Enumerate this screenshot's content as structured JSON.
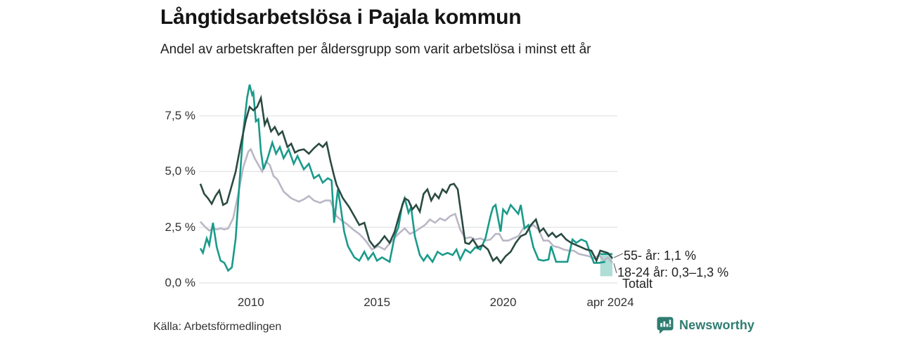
{
  "header": {
    "title": "Långtidsarbetslösa i Pajala kommun",
    "subtitle": "Andel av arbetskraften per åldersgrupp som varit arbetslösa i minst ett år"
  },
  "source": {
    "label": "Källa: Arbetsförmedlingen"
  },
  "branding": {
    "name": "Newsworthy",
    "logo_icon": "speech-bubble-bar-chart",
    "color": "#2f7c71"
  },
  "colors": {
    "series_55": "#2a4a41",
    "series_18_24": "#199a8a",
    "series_total": "#bab7c6",
    "band_fill": "#a0d8cf",
    "gridline": "#e4e4e9",
    "leader": "#666666",
    "text_dark": "#141414",
    "text_axis": "#333333"
  },
  "chart_data": {
    "type": "line",
    "title": "Långtidsarbetslösa i Pajala kommun",
    "subtitle": "Andel av arbetskraften per åldersgrupp som varit arbetslösa i minst ett år",
    "unit": "%",
    "grid": true,
    "x_axis": {
      "range_years": [
        2008.0,
        2024.333
      ],
      "ticks": [
        {
          "label": "2010",
          "year": 2010
        },
        {
          "label": "2015",
          "year": 2015
        },
        {
          "label": "2020",
          "year": 2020
        },
        {
          "label": "apr 2024",
          "year": 2024.25
        }
      ]
    },
    "y_axis": {
      "range": [
        0,
        9.2
      ],
      "gridline_max_value": 7.5,
      "ticks": [
        {
          "label": "7,5 %",
          "value": 7.5
        },
        {
          "label": "5,0 %",
          "value": 5.0
        },
        {
          "label": "2,5 %",
          "value": 2.5
        },
        {
          "label": "0,0 %",
          "value": 0.0
        }
      ]
    },
    "annotations": [
      {
        "label": "55- år: 1,1 %"
      },
      {
        "label": "18-24 år: 0,3–1,3 %"
      },
      {
        "label": "Totalt"
      }
    ],
    "band": {
      "series": "18-24 år",
      "x_from": 2023.85,
      "x_to": 2024.333,
      "value_from": 0.3,
      "value_to": 1.3,
      "top_edge_color": "#199a8a"
    },
    "series": [
      {
        "name": "Totalt",
        "color": "#bab7c6",
        "end_value": 0.9,
        "points": [
          [
            2008.0,
            2.75
          ],
          [
            2008.2,
            2.5
          ],
          [
            2008.35,
            2.35
          ],
          [
            2008.5,
            2.45
          ],
          [
            2008.65,
            2.4
          ],
          [
            2008.8,
            2.45
          ],
          [
            2008.95,
            2.4
          ],
          [
            2009.1,
            2.45
          ],
          [
            2009.3,
            2.9
          ],
          [
            2009.5,
            4.0
          ],
          [
            2009.7,
            5.2
          ],
          [
            2009.9,
            5.9
          ],
          [
            2010.0,
            6.0
          ],
          [
            2010.15,
            5.6
          ],
          [
            2010.3,
            5.3
          ],
          [
            2010.45,
            5.0
          ],
          [
            2010.6,
            5.45
          ],
          [
            2010.75,
            5.3
          ],
          [
            2010.9,
            4.8
          ],
          [
            2011.05,
            4.65
          ],
          [
            2011.3,
            4.1
          ],
          [
            2011.6,
            3.8
          ],
          [
            2011.9,
            3.65
          ],
          [
            2012.1,
            3.75
          ],
          [
            2012.3,
            3.9
          ],
          [
            2012.5,
            3.7
          ],
          [
            2012.75,
            3.6
          ],
          [
            2012.95,
            3.7
          ],
          [
            2013.15,
            3.7
          ],
          [
            2013.4,
            3.0
          ],
          [
            2013.6,
            2.8
          ],
          [
            2013.8,
            2.65
          ],
          [
            2014.05,
            2.4
          ],
          [
            2014.3,
            2.2
          ],
          [
            2014.55,
            1.9
          ],
          [
            2014.8,
            1.5
          ],
          [
            2015.05,
            1.65
          ],
          [
            2015.3,
            1.5
          ],
          [
            2015.6,
            1.9
          ],
          [
            2015.85,
            2.2
          ],
          [
            2016.1,
            2.45
          ],
          [
            2016.3,
            2.2
          ],
          [
            2016.5,
            2.3
          ],
          [
            2016.7,
            2.45
          ],
          [
            2016.9,
            2.6
          ],
          [
            2017.1,
            2.85
          ],
          [
            2017.3,
            2.7
          ],
          [
            2017.5,
            2.9
          ],
          [
            2017.7,
            2.8
          ],
          [
            2017.9,
            3.0
          ],
          [
            2018.1,
            3.1
          ],
          [
            2018.3,
            2.4
          ],
          [
            2018.5,
            2.0
          ],
          [
            2018.7,
            2.05
          ],
          [
            2018.9,
            1.95
          ],
          [
            2019.1,
            2.0
          ],
          [
            2019.3,
            1.9
          ],
          [
            2019.5,
            1.95
          ],
          [
            2019.7,
            2.2
          ],
          [
            2019.85,
            2.2
          ],
          [
            2020.0,
            1.9
          ],
          [
            2020.2,
            1.9
          ],
          [
            2020.4,
            2.0
          ],
          [
            2020.6,
            2.1
          ],
          [
            2020.8,
            2.45
          ],
          [
            2021.0,
            2.5
          ],
          [
            2021.2,
            2.6
          ],
          [
            2021.4,
            2.4
          ],
          [
            2021.6,
            1.9
          ],
          [
            2021.8,
            1.9
          ],
          [
            2022.0,
            1.65
          ],
          [
            2022.2,
            1.6
          ],
          [
            2022.4,
            1.5
          ],
          [
            2022.6,
            1.45
          ],
          [
            2022.8,
            1.45
          ],
          [
            2023.0,
            1.3
          ],
          [
            2023.2,
            1.25
          ],
          [
            2023.4,
            1.2
          ],
          [
            2023.6,
            1.1
          ],
          [
            2023.8,
            1.25
          ],
          [
            2024.0,
            1.0
          ],
          [
            2024.15,
            1.15
          ],
          [
            2024.333,
            0.9
          ]
        ]
      },
      {
        "name": "18-24 år",
        "color": "#199a8a",
        "end_value_range": [
          0.3,
          1.3
        ],
        "points": [
          [
            2008.0,
            1.55
          ],
          [
            2008.1,
            1.35
          ],
          [
            2008.25,
            2.0
          ],
          [
            2008.35,
            1.7
          ],
          [
            2008.5,
            2.7
          ],
          [
            2008.65,
            1.6
          ],
          [
            2008.8,
            1.0
          ],
          [
            2008.95,
            0.9
          ],
          [
            2009.1,
            0.55
          ],
          [
            2009.25,
            0.7
          ],
          [
            2009.4,
            2.0
          ],
          [
            2009.55,
            4.5
          ],
          [
            2009.7,
            6.8
          ],
          [
            2009.85,
            8.3
          ],
          [
            2009.95,
            8.9
          ],
          [
            2010.05,
            8.45
          ],
          [
            2010.1,
            8.55
          ],
          [
            2010.2,
            7.25
          ],
          [
            2010.3,
            7.35
          ],
          [
            2010.4,
            5.9
          ],
          [
            2010.5,
            5.1
          ],
          [
            2010.65,
            5.55
          ],
          [
            2010.85,
            6.3
          ],
          [
            2011.0,
            5.8
          ],
          [
            2011.15,
            6.1
          ],
          [
            2011.3,
            5.6
          ],
          [
            2011.5,
            6.0
          ],
          [
            2011.7,
            5.35
          ],
          [
            2011.85,
            5.7
          ],
          [
            2012.1,
            5.1
          ],
          [
            2012.3,
            5.35
          ],
          [
            2012.5,
            4.7
          ],
          [
            2012.7,
            4.85
          ],
          [
            2012.85,
            4.5
          ],
          [
            2013.05,
            4.7
          ],
          [
            2013.2,
            4.6
          ],
          [
            2013.3,
            2.7
          ],
          [
            2013.45,
            4.2
          ],
          [
            2013.55,
            3.5
          ],
          [
            2013.7,
            2.3
          ],
          [
            2013.85,
            1.65
          ],
          [
            2014.1,
            1.15
          ],
          [
            2014.3,
            1.0
          ],
          [
            2014.5,
            1.4
          ],
          [
            2014.65,
            1.05
          ],
          [
            2014.85,
            1.35
          ],
          [
            2015.0,
            1.0
          ],
          [
            2015.2,
            1.15
          ],
          [
            2015.5,
            0.95
          ],
          [
            2015.7,
            2.1
          ],
          [
            2015.85,
            2.5
          ],
          [
            2016.0,
            3.5
          ],
          [
            2016.1,
            3.8
          ],
          [
            2016.25,
            3.15
          ],
          [
            2016.35,
            3.4
          ],
          [
            2016.5,
            2.1
          ],
          [
            2016.7,
            1.25
          ],
          [
            2016.85,
            1.0
          ],
          [
            2017.0,
            1.25
          ],
          [
            2017.2,
            0.95
          ],
          [
            2017.4,
            1.4
          ],
          [
            2017.6,
            1.25
          ],
          [
            2017.8,
            1.35
          ],
          [
            2018.0,
            1.25
          ],
          [
            2018.15,
            1.5
          ],
          [
            2018.3,
            1.05
          ],
          [
            2018.5,
            1.5
          ],
          [
            2018.7,
            1.35
          ],
          [
            2018.9,
            1.6
          ],
          [
            2019.1,
            1.5
          ],
          [
            2019.3,
            2.0
          ],
          [
            2019.5,
            3.0
          ],
          [
            2019.6,
            3.4
          ],
          [
            2019.7,
            3.5
          ],
          [
            2019.8,
            2.9
          ],
          [
            2019.9,
            2.3
          ],
          [
            2020.0,
            3.3
          ],
          [
            2020.15,
            3.1
          ],
          [
            2020.3,
            3.5
          ],
          [
            2020.45,
            3.3
          ],
          [
            2020.6,
            3.1
          ],
          [
            2020.7,
            3.5
          ],
          [
            2020.85,
            2.45
          ],
          [
            2021.0,
            2.6
          ],
          [
            2021.2,
            1.6
          ],
          [
            2021.4,
            1.05
          ],
          [
            2021.6,
            1.0
          ],
          [
            2021.8,
            1.05
          ],
          [
            2021.9,
            1.65
          ],
          [
            2022.1,
            0.95
          ],
          [
            2022.3,
            0.95
          ],
          [
            2022.55,
            0.95
          ],
          [
            2022.75,
            1.95
          ],
          [
            2022.9,
            1.8
          ],
          [
            2023.1,
            1.95
          ],
          [
            2023.3,
            1.85
          ],
          [
            2023.45,
            1.35
          ],
          [
            2023.6,
            0.9
          ],
          [
            2023.8,
            0.9
          ],
          [
            2024.05,
            0.95
          ]
        ]
      },
      {
        "name": "55- år",
        "color": "#2a4a41",
        "end_value": 1.1,
        "points": [
          [
            2008.0,
            4.45
          ],
          [
            2008.15,
            4.0
          ],
          [
            2008.3,
            3.8
          ],
          [
            2008.45,
            3.55
          ],
          [
            2008.6,
            3.9
          ],
          [
            2008.75,
            4.15
          ],
          [
            2008.9,
            3.5
          ],
          [
            2009.05,
            3.6
          ],
          [
            2009.2,
            4.2
          ],
          [
            2009.4,
            5.0
          ],
          [
            2009.6,
            6.2
          ],
          [
            2009.8,
            7.3
          ],
          [
            2009.95,
            7.9
          ],
          [
            2010.1,
            7.75
          ],
          [
            2010.25,
            7.9
          ],
          [
            2010.4,
            8.3
          ],
          [
            2010.55,
            7.1
          ],
          [
            2010.65,
            7.35
          ],
          [
            2010.8,
            6.8
          ],
          [
            2010.95,
            7.0
          ],
          [
            2011.1,
            6.65
          ],
          [
            2011.25,
            6.8
          ],
          [
            2011.45,
            6.1
          ],
          [
            2011.6,
            6.25
          ],
          [
            2011.75,
            5.85
          ],
          [
            2011.9,
            5.95
          ],
          [
            2012.1,
            6.0
          ],
          [
            2012.3,
            5.8
          ],
          [
            2012.5,
            6.05
          ],
          [
            2012.7,
            6.25
          ],
          [
            2012.85,
            6.1
          ],
          [
            2013.0,
            6.3
          ],
          [
            2013.15,
            5.5
          ],
          [
            2013.3,
            4.8
          ],
          [
            2013.4,
            4.4
          ],
          [
            2013.65,
            3.8
          ],
          [
            2013.9,
            3.4
          ],
          [
            2014.15,
            2.9
          ],
          [
            2014.3,
            2.6
          ],
          [
            2014.5,
            2.7
          ],
          [
            2014.7,
            1.9
          ],
          [
            2014.9,
            1.6
          ],
          [
            2015.1,
            1.8
          ],
          [
            2015.3,
            2.1
          ],
          [
            2015.5,
            1.8
          ],
          [
            2015.7,
            2.3
          ],
          [
            2015.9,
            3.1
          ],
          [
            2016.1,
            3.8
          ],
          [
            2016.25,
            3.7
          ],
          [
            2016.4,
            3.3
          ],
          [
            2016.55,
            3.5
          ],
          [
            2016.7,
            3.2
          ],
          [
            2016.85,
            4.0
          ],
          [
            2017.0,
            4.2
          ],
          [
            2017.15,
            3.7
          ],
          [
            2017.3,
            4.0
          ],
          [
            2017.45,
            3.8
          ],
          [
            2017.6,
            4.2
          ],
          [
            2017.75,
            4.05
          ],
          [
            2017.9,
            4.4
          ],
          [
            2018.05,
            4.45
          ],
          [
            2018.2,
            4.2
          ],
          [
            2018.35,
            3.0
          ],
          [
            2018.5,
            1.8
          ],
          [
            2018.65,
            1.75
          ],
          [
            2018.8,
            1.95
          ],
          [
            2019.0,
            1.6
          ],
          [
            2019.2,
            1.7
          ],
          [
            2019.4,
            1.5
          ],
          [
            2019.6,
            1.0
          ],
          [
            2019.75,
            1.15
          ],
          [
            2019.9,
            0.9
          ],
          [
            2020.1,
            1.2
          ],
          [
            2020.3,
            1.4
          ],
          [
            2020.5,
            1.8
          ],
          [
            2020.7,
            2.1
          ],
          [
            2020.9,
            2.2
          ],
          [
            2021.1,
            2.6
          ],
          [
            2021.3,
            2.85
          ],
          [
            2021.45,
            2.3
          ],
          [
            2021.6,
            2.45
          ],
          [
            2021.8,
            2.1
          ],
          [
            2021.95,
            2.25
          ],
          [
            2022.1,
            2.05
          ],
          [
            2022.3,
            2.2
          ],
          [
            2022.5,
            1.95
          ],
          [
            2022.7,
            1.8
          ],
          [
            2022.9,
            1.7
          ],
          [
            2023.1,
            1.6
          ],
          [
            2023.3,
            1.5
          ],
          [
            2023.5,
            1.45
          ],
          [
            2023.7,
            1.0
          ],
          [
            2023.85,
            1.45
          ],
          [
            2024.0,
            1.4
          ],
          [
            2024.15,
            1.35
          ],
          [
            2024.333,
            1.1
          ]
        ]
      }
    ]
  }
}
